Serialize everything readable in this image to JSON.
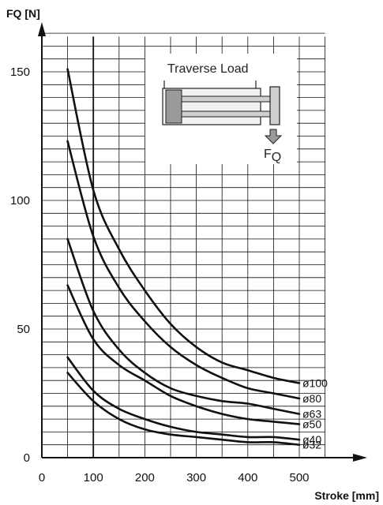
{
  "chart_data": {
    "type": "line",
    "ylabel": "FQ [N]",
    "xlabel": "Stroke [mm]",
    "xlim": [
      0,
      500
    ],
    "ylim": [
      0,
      160
    ],
    "x_ticks": [
      "0",
      "100",
      "200",
      "300",
      "400",
      "500"
    ],
    "y_ticks": [
      "0",
      "50",
      "100",
      "150"
    ],
    "grid": true,
    "inset": {
      "title": "Traverse Load",
      "label": "F",
      "label_sub": "Q"
    },
    "series": [
      {
        "name": "ø100",
        "x": [
          50,
          100,
          150,
          200,
          250,
          300,
          350,
          400,
          450,
          500
        ],
        "y": [
          151,
          104,
          81,
          65,
          52,
          43,
          37,
          34,
          31,
          29
        ]
      },
      {
        "name": "ø80",
        "x": [
          50,
          100,
          150,
          200,
          250,
          300,
          350,
          400,
          450,
          500
        ],
        "y": [
          123,
          86,
          66,
          53,
          43,
          36,
          31,
          27,
          25,
          23
        ]
      },
      {
        "name": "ø63",
        "x": [
          50,
          100,
          150,
          200,
          250,
          300,
          350,
          400,
          450,
          500
        ],
        "y": [
          85,
          57,
          42,
          33,
          27,
          24,
          22,
          21,
          19,
          17
        ]
      },
      {
        "name": "ø50",
        "x": [
          50,
          100,
          150,
          200,
          250,
          300,
          350,
          400,
          450,
          500
        ],
        "y": [
          67,
          46,
          36,
          30,
          24,
          20,
          17,
          15,
          14,
          13
        ]
      },
      {
        "name": "ø40",
        "x": [
          50,
          100,
          150,
          200,
          250,
          300,
          350,
          400,
          450,
          500
        ],
        "y": [
          39,
          26,
          19,
          15,
          12,
          10,
          9,
          8,
          8,
          7
        ]
      },
      {
        "name": "ø32",
        "x": [
          50,
          100,
          150,
          200,
          250,
          300,
          350,
          400,
          450,
          500
        ],
        "y": [
          33,
          22,
          15,
          11,
          9,
          8,
          7,
          6,
          6,
          5
        ]
      }
    ]
  }
}
